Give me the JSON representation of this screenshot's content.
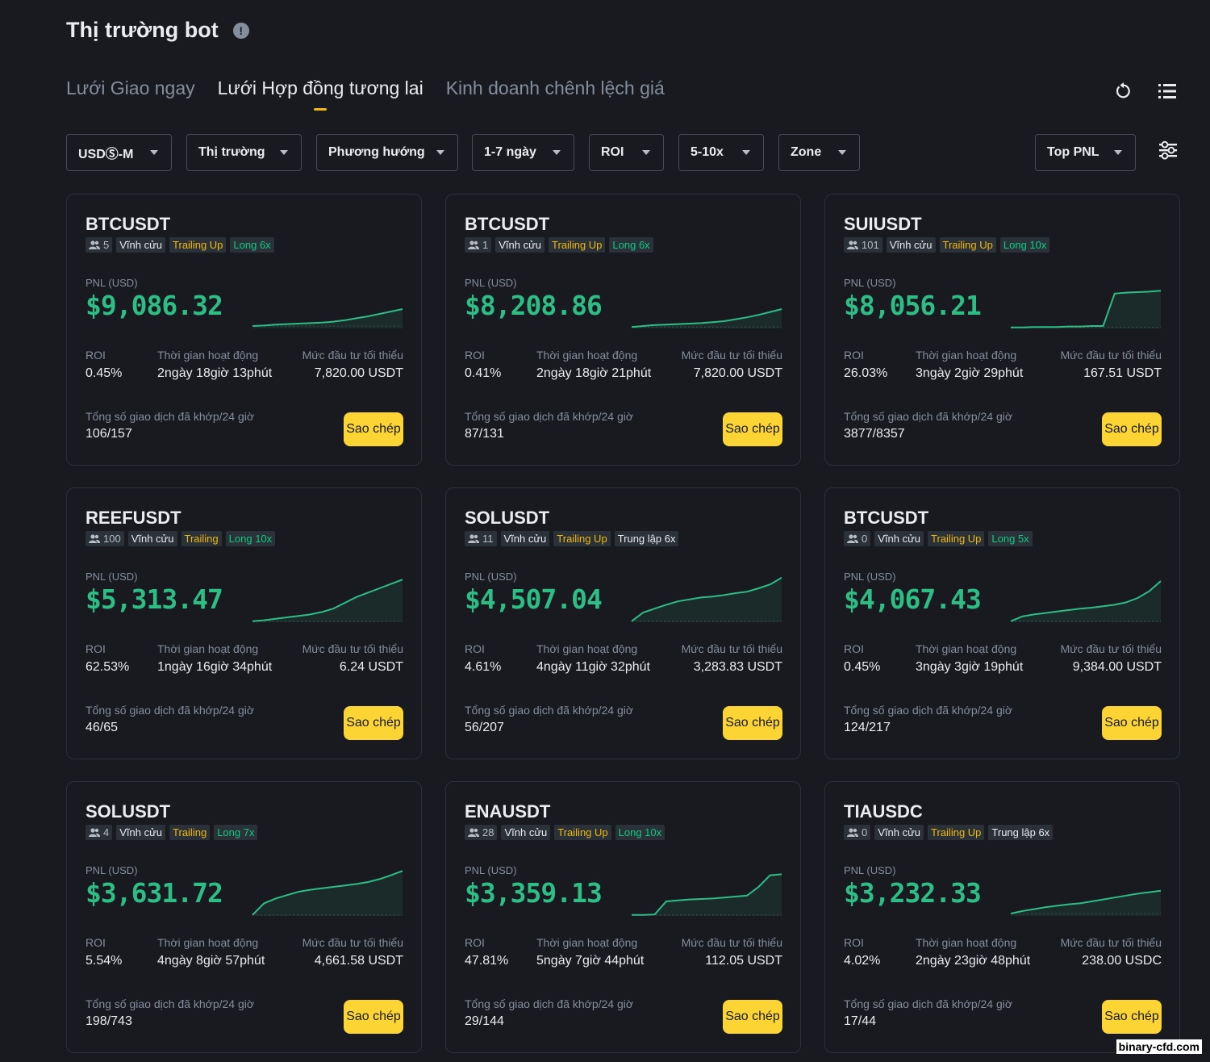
{
  "header": {
    "title": "Thị trường bot"
  },
  "tabs": [
    {
      "label": "Lưới Giao ngay"
    },
    {
      "label": "Lưới Hợp đồng tương lai"
    },
    {
      "label": "Kinh doanh chênh lệch giá"
    }
  ],
  "filters": [
    {
      "label": "USDⓈ-M"
    },
    {
      "label": "Thị trường"
    },
    {
      "label": "Phương hướng"
    },
    {
      "label": "1-7 ngày"
    },
    {
      "label": "ROI"
    },
    {
      "label": "5-10x"
    },
    {
      "label": "Zone"
    },
    {
      "label": "Top PNL"
    }
  ],
  "labels": {
    "pnl": "PNL (USD)",
    "roi": "ROI",
    "runtime": "Thời gian hoạt động",
    "min_invest": "Mức đầu tư tối thiểu",
    "trades": "Tổng số giao dịch đã khớp/24 giờ",
    "copy": "Sao chép"
  },
  "colors": {
    "accent": "#fcd535",
    "profit": "#2ebd85",
    "trailing": "#f0b90b",
    "long": "#0ecb81"
  },
  "cards": [
    {
      "pair": "BTCUSDT",
      "users": "5",
      "type": "Vĩnh cửu",
      "trailing": "Trailing Up",
      "direction": "Long 6x",
      "pnl": "$9,086.32",
      "roi": "0.45%",
      "runtime": "2ngày 18giờ 13phút",
      "min_invest": "7,820.00 USDT",
      "trades": "106/157",
      "spark": [
        0.05,
        0.06,
        0.08,
        0.09,
        0.1,
        0.11,
        0.12,
        0.14,
        0.17,
        0.21,
        0.25,
        0.3,
        0.35,
        0.4
      ]
    },
    {
      "pair": "BTCUSDT",
      "users": "1",
      "type": "Vĩnh cửu",
      "trailing": "Trailing Up",
      "direction": "Long 6x",
      "pnl": "$8,208.86",
      "roi": "0.41%",
      "runtime": "2ngày 18giờ 21phút",
      "min_invest": "7,820.00 USDT",
      "trades": "87/131",
      "spark": [
        0.03,
        0.05,
        0.07,
        0.08,
        0.09,
        0.1,
        0.11,
        0.13,
        0.15,
        0.19,
        0.23,
        0.28,
        0.34,
        0.4
      ]
    },
    {
      "pair": "SUIUSDT",
      "users": "101",
      "type": "Vĩnh cửu",
      "trailing": "Trailing Up",
      "direction": "Long 10x",
      "pnl": "$8,056.21",
      "roi": "26.03%",
      "runtime": "3ngày 2giờ 29phút",
      "min_invest": "167.51 USDT",
      "trades": "3877/8357",
      "spark": [
        0.02,
        0.02,
        0.03,
        0.03,
        0.03,
        0.04,
        0.04,
        0.05,
        0.05,
        0.72,
        0.74,
        0.75,
        0.76,
        0.78
      ]
    },
    {
      "pair": "REEFUSDT",
      "users": "100",
      "type": "Vĩnh cửu",
      "trailing": "Trailing",
      "direction": "Long 10x",
      "pnl": "$5,313.47",
      "roi": "62.53%",
      "runtime": "1ngày 16giờ 34phút",
      "min_invest": "6.24 USDT",
      "trades": "46/65",
      "spark": [
        0.02,
        0.04,
        0.07,
        0.1,
        0.13,
        0.16,
        0.21,
        0.28,
        0.4,
        0.52,
        0.61,
        0.7,
        0.79,
        0.88
      ]
    },
    {
      "pair": "SOLUSDT",
      "users": "11",
      "type": "Vĩnh cửu",
      "trailing": "Trailing Up",
      "direction": "Trung lập 6x",
      "pnl": "$4,507.04",
      "roi": "4.61%",
      "runtime": "4ngày 11giờ 32phút",
      "min_invest": "3,283.83 USDT",
      "trades": "56/207",
      "spark": [
        0.02,
        0.2,
        0.28,
        0.36,
        0.43,
        0.47,
        0.51,
        0.53,
        0.56,
        0.6,
        0.63,
        0.7,
        0.78,
        0.92
      ]
    },
    {
      "pair": "BTCUSDT",
      "users": "0",
      "type": "Vĩnh cửu",
      "trailing": "Trailing Up",
      "direction": "Long 5x",
      "pnl": "$4,067.43",
      "roi": "0.45%",
      "runtime": "3ngày 3giờ 19phút",
      "min_invest": "9,384.00 USDT",
      "trades": "124/217",
      "spark": [
        0.02,
        0.12,
        0.16,
        0.19,
        0.22,
        0.25,
        0.28,
        0.3,
        0.33,
        0.36,
        0.41,
        0.5,
        0.64,
        0.85
      ]
    },
    {
      "pair": "SOLUSDT",
      "users": "4",
      "type": "Vĩnh cửu",
      "trailing": "Trailing",
      "direction": "Long 7x",
      "pnl": "$3,631.72",
      "roi": "5.54%",
      "runtime": "4ngày 8giờ 57phút",
      "min_invest": "4,661.58 USDT",
      "trades": "198/743",
      "spark": [
        0.02,
        0.26,
        0.36,
        0.43,
        0.5,
        0.54,
        0.57,
        0.6,
        0.63,
        0.66,
        0.7,
        0.76,
        0.84,
        0.93
      ]
    },
    {
      "pair": "ENAUSDT",
      "users": "28",
      "type": "Vĩnh cửu",
      "trailing": "Trailing Up",
      "direction": "Long 10x",
      "pnl": "$3,359.13",
      "roi": "47.81%",
      "runtime": "5ngày 7giờ 44phút",
      "min_invest": "112.05 USDT",
      "trades": "29/144",
      "spark": [
        0.02,
        0.02,
        0.03,
        0.3,
        0.32,
        0.34,
        0.35,
        0.36,
        0.38,
        0.4,
        0.42,
        0.6,
        0.84,
        0.86
      ]
    },
    {
      "pair": "TIAUSDC",
      "users": "0",
      "type": "Vĩnh cửu",
      "trailing": "Trailing Up",
      "direction": "Trung lập 6x",
      "pnl": "$3,232.33",
      "roi": "4.02%",
      "runtime": "2ngày 23giờ 48phút",
      "min_invest": "238.00 USDC",
      "trades": "17/44",
      "spark": [
        0.05,
        0.1,
        0.14,
        0.18,
        0.21,
        0.24,
        0.26,
        0.3,
        0.34,
        0.38,
        0.42,
        0.46,
        0.49,
        0.52
      ]
    }
  ],
  "watermark": "binary-cfd.com"
}
